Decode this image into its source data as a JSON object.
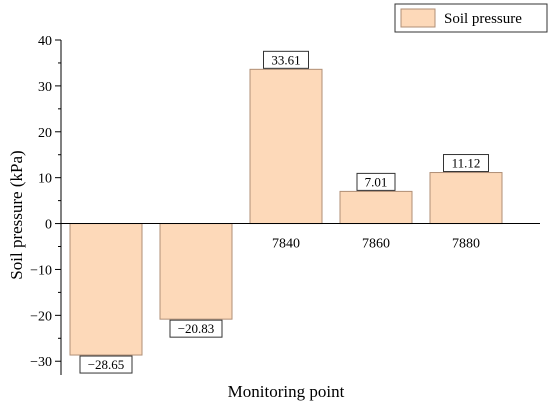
{
  "chart_data": {
    "type": "bar",
    "categories": [
      "",
      "",
      "7840",
      "7860",
      "7880"
    ],
    "series": [
      {
        "name": "Soil pressure",
        "values": [
          -28.65,
          -20.83,
          33.61,
          7.01,
          11.12
        ]
      }
    ],
    "data_labels": [
      "−28.65",
      "−20.83",
      "33.61",
      "7.01",
      "11.12"
    ],
    "xlabel": "Monitoring point",
    "ylabel": "Soil pressure (kPa)",
    "ylim": [
      -33,
      40
    ],
    "yticks": [
      {
        "value": 40,
        "label": "40"
      },
      {
        "value": 30,
        "label": "30"
      },
      {
        "value": 20,
        "label": "20"
      },
      {
        "value": 10,
        "label": "10"
      },
      {
        "value": 0,
        "label": "0"
      },
      {
        "value": -10,
        "label": "−10"
      },
      {
        "value": -20,
        "label": "−20"
      },
      {
        "value": -30,
        "label": "−30"
      }
    ],
    "grid": false,
    "legend_position": "top-right",
    "colors": {
      "bar_fill": "#fdd9b9",
      "bar_stroke": "#b08f76",
      "axis": "#000000"
    }
  }
}
